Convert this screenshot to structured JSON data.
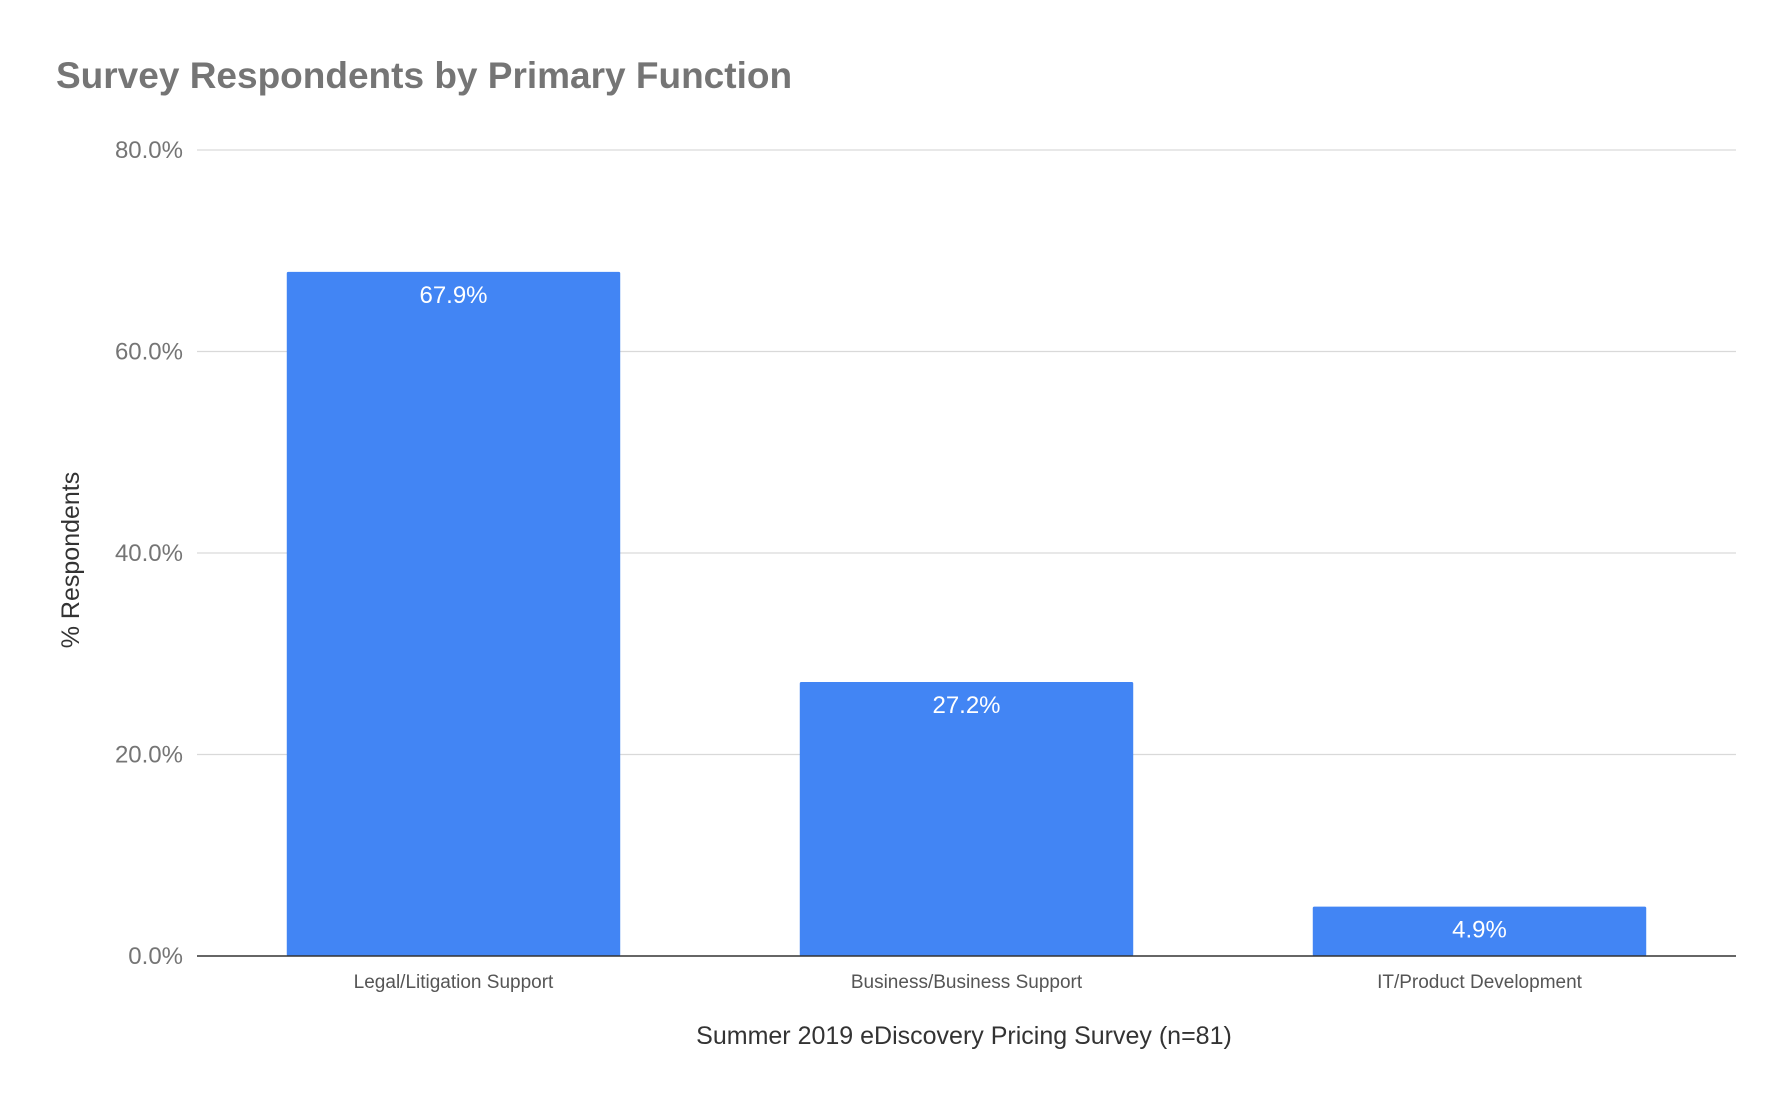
{
  "chart_data": {
    "type": "bar",
    "title": "Survey Respondents by Primary Function",
    "xlabel": "Summer 2019 eDiscovery Pricing Survey (n=81)",
    "ylabel": "% Respondents",
    "categories": [
      "Legal/Litigation Support",
      "Business/Business Support",
      "IT/Product Development"
    ],
    "series": [
      {
        "values": [
          67.9,
          27.2,
          4.9
        ],
        "data_labels": [
          "67.9%",
          "27.2%",
          "4.9%"
        ],
        "color": "#4285F4"
      }
    ],
    "ylim": [
      0,
      80
    ],
    "y_ticks": [
      0,
      20,
      40,
      60,
      80
    ],
    "y_tick_labels": [
      "0.0%",
      "20.0%",
      "40.0%",
      "60.0%",
      "80.0%"
    ],
    "grid": true,
    "legend": "none",
    "colors": {
      "bar": "#4285F4",
      "gridline": "#d9d9d9",
      "baseline": "#333333",
      "title": "#757575"
    }
  }
}
